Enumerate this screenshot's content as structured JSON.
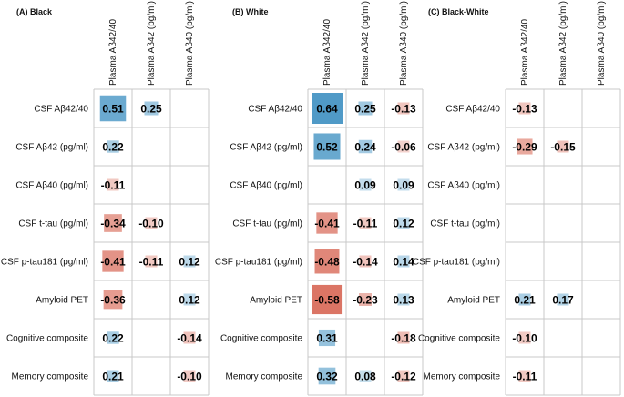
{
  "chart_data": {
    "type": "heatmap",
    "columns": [
      "Plasma Aβ42/40",
      "Plasma Aβ42 (pg/ml)",
      "Plasma Aβ40 (pg/ml)"
    ],
    "rows": [
      "CSF Aβ42/40",
      "CSF Aβ42 (pg/ml)",
      "CSF Aβ40 (pg/ml)",
      "CSF t-tau (pg/ml)",
      "CSF p-tau181 (pg/ml)",
      "Amyloid PET",
      "Cognitive composite",
      "Memory composite"
    ],
    "color_scale": {
      "negative": "#d6604d",
      "positive": "#4393c3",
      "max_abs": 0.7
    },
    "panels": [
      {
        "title": "(A) Black",
        "values": [
          [
            0.51,
            0.25,
            null
          ],
          [
            0.22,
            null,
            null
          ],
          [
            -0.11,
            null,
            null
          ],
          [
            -0.34,
            -0.1,
            null
          ],
          [
            -0.41,
            -0.11,
            0.12
          ],
          [
            -0.36,
            null,
            0.12
          ],
          [
            0.22,
            null,
            -0.14
          ],
          [
            0.21,
            null,
            -0.1
          ]
        ],
        "labels": [
          [
            "0.51",
            "0.25",
            ""
          ],
          [
            "0.22",
            "",
            ""
          ],
          [
            "-0.11",
            "",
            ""
          ],
          [
            "-0.34",
            "-0.10",
            ""
          ],
          [
            "-0.41",
            "-0.11",
            "0.12"
          ],
          [
            "-0.36",
            "",
            "0.12"
          ],
          [
            "0.22",
            "",
            "-0.14"
          ],
          [
            "0.21",
            "",
            "-0.10"
          ]
        ]
      },
      {
        "title": "(B) White",
        "values": [
          [
            0.64,
            0.25,
            -0.13
          ],
          [
            0.52,
            0.24,
            -0.06
          ],
          [
            null,
            0.09,
            0.09
          ],
          [
            -0.41,
            -0.11,
            0.12
          ],
          [
            -0.48,
            -0.14,
            0.14
          ],
          [
            -0.58,
            -0.23,
            0.13
          ],
          [
            0.31,
            null,
            -0.18
          ],
          [
            0.32,
            0.08,
            -0.12
          ]
        ],
        "labels": [
          [
            "0.64",
            "0.25",
            "-0.13"
          ],
          [
            "0.52",
            "0.24",
            "-0.06"
          ],
          [
            "",
            "0.09",
            "0.09"
          ],
          [
            "-0.41",
            "-0.11",
            "0.12"
          ],
          [
            "-0.48",
            "-0.14",
            "0.14"
          ],
          [
            "-0.58",
            "-0.23",
            "0.13"
          ],
          [
            "0.31",
            "",
            "-0.18"
          ],
          [
            "0.32",
            "0.08",
            "-0.12"
          ]
        ]
      },
      {
        "title": "(C) Black-White",
        "values": [
          [
            -0.13,
            null,
            null
          ],
          [
            -0.29,
            -0.15,
            null
          ],
          [
            null,
            null,
            null
          ],
          [
            null,
            null,
            null
          ],
          [
            null,
            null,
            null
          ],
          [
            0.21,
            0.17,
            null
          ],
          [
            -0.1,
            null,
            null
          ],
          [
            -0.11,
            null,
            null
          ]
        ],
        "labels": [
          [
            "-0.13",
            "",
            ""
          ],
          [
            "-0.29",
            "-0.15",
            ""
          ],
          [
            "",
            "",
            ""
          ],
          [
            "",
            "",
            ""
          ],
          [
            "",
            "",
            ""
          ],
          [
            "0.21",
            "0.17",
            ""
          ],
          [
            "-0.10",
            "",
            ""
          ],
          [
            "-0.11",
            "",
            ""
          ]
        ]
      }
    ]
  }
}
